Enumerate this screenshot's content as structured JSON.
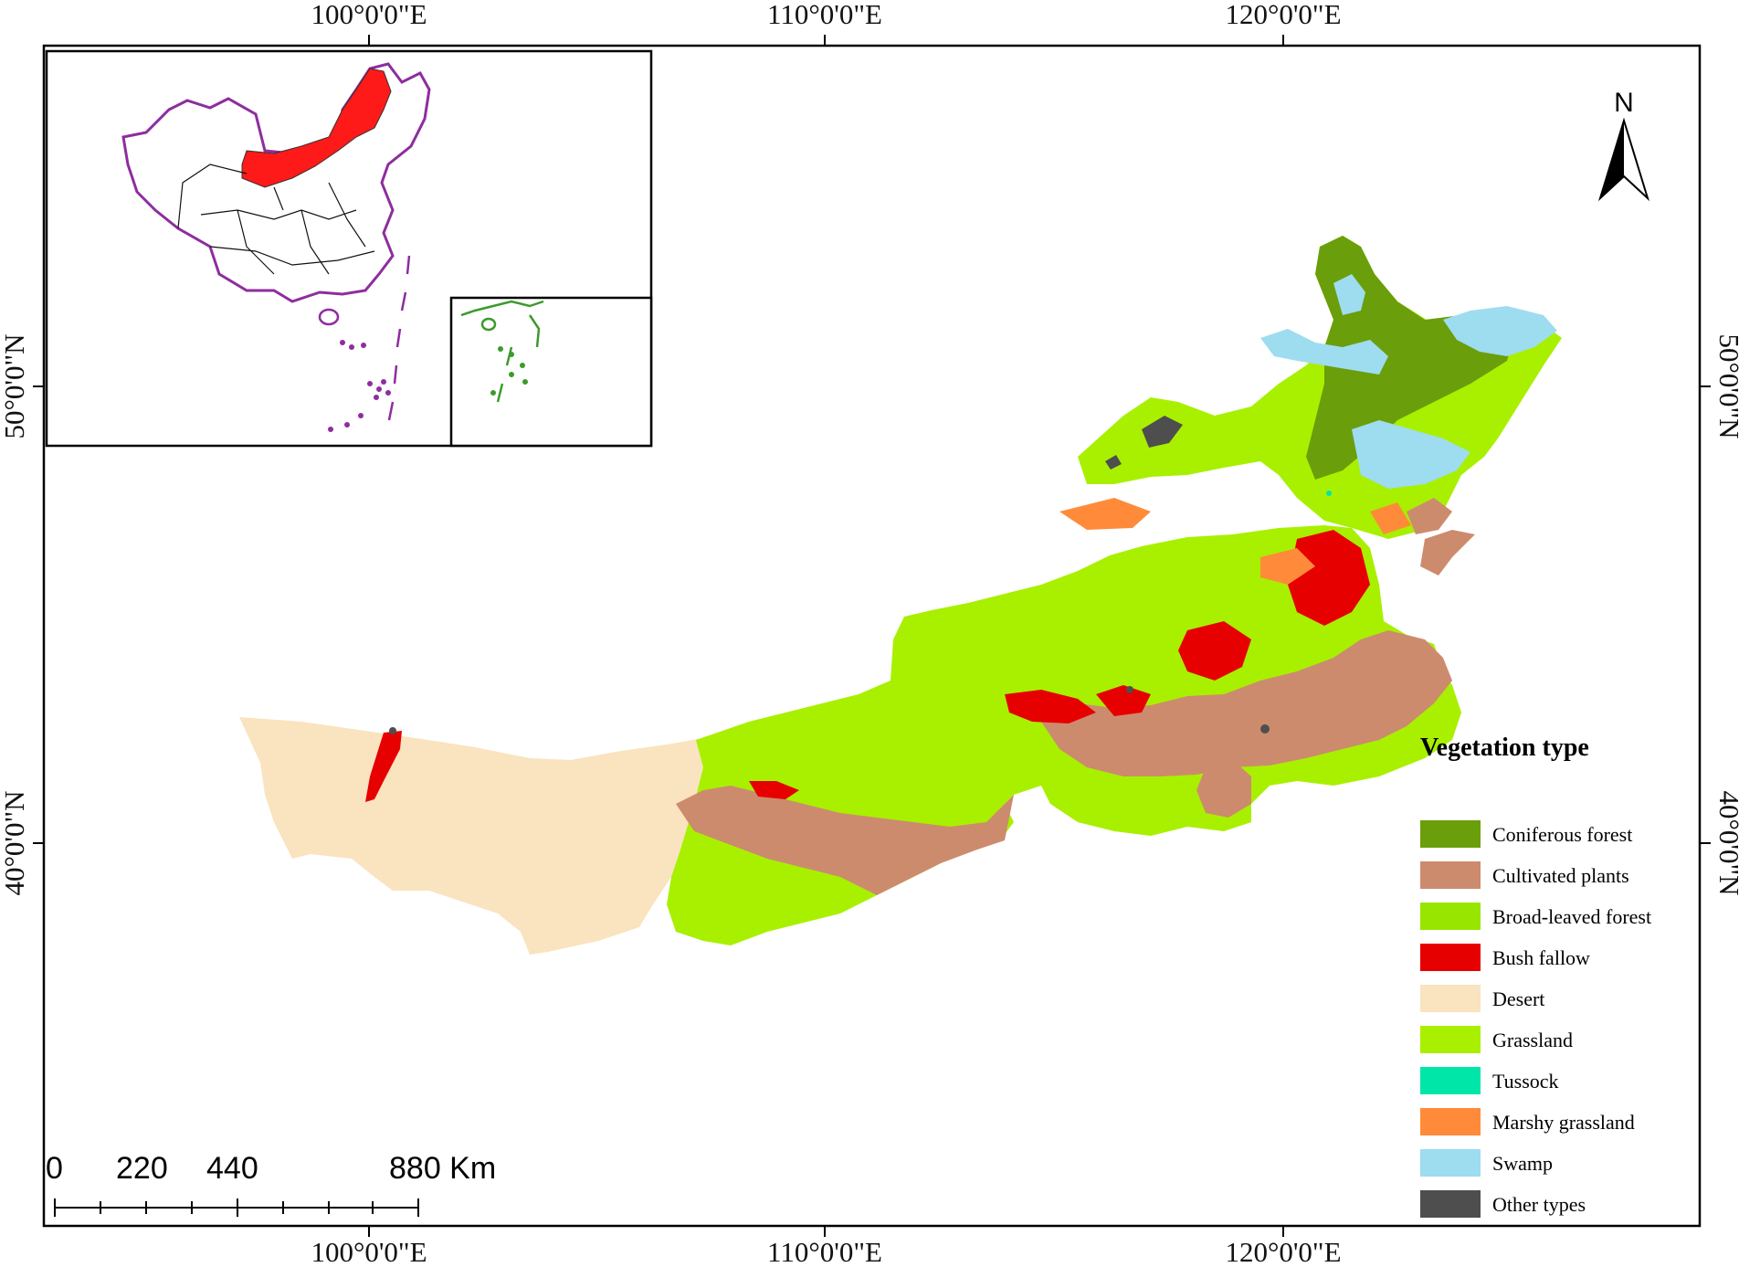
{
  "map": {
    "top_ticks": [
      "100°0'0\"E",
      "110°0'0\"E",
      "120°0'0\"E"
    ],
    "bottom_ticks": [
      "100°0'0\"E",
      "110°0'0\"E",
      "120°0'0\"E"
    ],
    "left_ticks": [
      "50°0'0\"N",
      "40°0'0\"N"
    ],
    "right_ticks": [
      "50°0'0\"N",
      "40°0'0\"N"
    ]
  },
  "north_arrow": {
    "label": "N",
    "icon": "north-arrow-icon"
  },
  "legend": {
    "title": "Vegetation type",
    "items": [
      {
        "label": "Coniferous forest",
        "color": "#6a9e0b"
      },
      {
        "label": "Cultivated plants",
        "color": "#cd8b6d"
      },
      {
        "label": "Broad-leaved forest",
        "color": "#98e600"
      },
      {
        "label": "Bush fallow",
        "color": "#e60000"
      },
      {
        "label": "Desert",
        "color": "#fae3bf"
      },
      {
        "label": "Grassland",
        "color": "#a8f000"
      },
      {
        "label": "Tussock",
        "color": "#00e6a8"
      },
      {
        "label": "Marshy grassland",
        "color": "#ff8b3a"
      },
      {
        "label": "Swamp",
        "color": "#9edcf0"
      },
      {
        "label": "Other types",
        "color": "#4e4e4e"
      }
    ]
  },
  "scale_bar": {
    "labels": [
      "0",
      "220",
      "440",
      "880 Km"
    ]
  },
  "inset": {
    "highlight_color": "#ff1a1a",
    "border_color": "#8e2d9e",
    "islands_color": "#3d9a2c"
  }
}
